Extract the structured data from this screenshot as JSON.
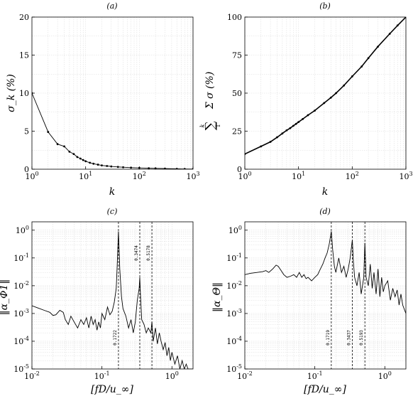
{
  "chart_data": [
    {
      "id": "a",
      "type": "line",
      "title": "(a)",
      "xlabel": "k",
      "ylabel": "σ_k (%)",
      "xscale": "log",
      "yscale": "linear",
      "xlim": [
        1,
        1000
      ],
      "ylim": [
        0,
        20
      ],
      "xticks": [
        {
          "v": 1,
          "label": "10^0"
        },
        {
          "v": 10,
          "label": "10^1"
        },
        {
          "v": 100,
          "label": "10^2"
        },
        {
          "v": 1000,
          "label": "10^3"
        }
      ],
      "yticks": [
        {
          "v": 0,
          "label": "0"
        },
        {
          "v": 5,
          "label": "5"
        },
        {
          "v": 10,
          "label": "10"
        },
        {
          "v": 15,
          "label": "15"
        },
        {
          "v": 20,
          "label": "20"
        }
      ],
      "grid": true,
      "series": [
        {
          "markers": true,
          "x": [
            1,
            2,
            3,
            4,
            5,
            6,
            7,
            8,
            9,
            10,
            12,
            14,
            17,
            20,
            25,
            30,
            40,
            50,
            70,
            100,
            150,
            200,
            300,
            500,
            700,
            1000
          ],
          "y": [
            10,
            4.9,
            3.3,
            3.0,
            2.3,
            2.0,
            1.6,
            1.4,
            1.2,
            1.05,
            0.85,
            0.72,
            0.6,
            0.5,
            0.42,
            0.36,
            0.3,
            0.26,
            0.21,
            0.17,
            0.13,
            0.11,
            0.08,
            0.05,
            0.03,
            0.02
          ]
        }
      ]
    },
    {
      "id": "b",
      "type": "line",
      "title": "(b)",
      "xlabel": "k",
      "ylabel": "Σ σ (%)",
      "ylabel_sum_upper": "k",
      "ylabel_sum_lower": "1",
      "xscale": "log",
      "yscale": "linear",
      "xlim": [
        1,
        1000
      ],
      "ylim": [
        0,
        100
      ],
      "xticks": [
        {
          "v": 1,
          "label": "10^0"
        },
        {
          "v": 10,
          "label": "10^1"
        },
        {
          "v": 100,
          "label": "10^2"
        },
        {
          "v": 1000,
          "label": "10^3"
        }
      ],
      "yticks": [
        {
          "v": 0,
          "label": "0"
        },
        {
          "v": 25,
          "label": "25"
        },
        {
          "v": 50,
          "label": "50"
        },
        {
          "v": 75,
          "label": "75"
        },
        {
          "v": 100,
          "label": "100"
        }
      ],
      "grid": true,
      "series": [
        {
          "markers": true,
          "x": [
            1,
            2,
            3,
            4,
            5,
            6,
            7,
            8,
            9,
            10,
            12,
            15,
            20,
            30,
            40,
            50,
            70,
            100,
            150,
            200,
            300,
            500,
            700,
            1000
          ],
          "y": [
            10,
            15,
            18,
            21,
            23.5,
            25.5,
            27,
            28.5,
            29.8,
            31,
            33,
            35.5,
            38.5,
            43.5,
            47,
            50,
            55,
            61,
            67.5,
            73,
            80.5,
            89,
            94.5,
            100
          ]
        }
      ]
    },
    {
      "id": "c",
      "type": "line",
      "title": "(c)",
      "xlabel": "[fD/u_∞]",
      "ylabel": "‖α_Φ1‖",
      "xscale": "log",
      "yscale": "log",
      "xlim": [
        0.01,
        2
      ],
      "ylim": [
        1e-05,
        2
      ],
      "xticks": [
        {
          "v": 0.01,
          "label": "10^-2"
        },
        {
          "v": 0.1,
          "label": "10^-1"
        },
        {
          "v": 1,
          "label": "10^0"
        }
      ],
      "yticks": [
        {
          "v": 1e-05,
          "label": "10^-5"
        },
        {
          "v": 0.0001,
          "label": "10^-4"
        },
        {
          "v": 0.001,
          "label": "10^-3"
        },
        {
          "v": 0.01,
          "label": "10^-2"
        },
        {
          "v": 0.1,
          "label": "10^-1"
        },
        {
          "v": 1,
          "label": "10^0"
        }
      ],
      "grid": true,
      "vlines": [
        {
          "x": 0.1722,
          "label": "0.1722",
          "label_pos": "bottom"
        },
        {
          "x": 0.3474,
          "label": "0.3474",
          "label_pos": "top"
        },
        {
          "x": 0.5178,
          "label": "0.5178",
          "label_pos": "top"
        }
      ],
      "series": [
        {
          "markers": false,
          "x": [
            0.01,
            0.012,
            0.015,
            0.018,
            0.02,
            0.022,
            0.025,
            0.028,
            0.03,
            0.033,
            0.036,
            0.04,
            0.045,
            0.05,
            0.055,
            0.06,
            0.065,
            0.07,
            0.075,
            0.08,
            0.085,
            0.09,
            0.095,
            0.1,
            0.11,
            0.12,
            0.13,
            0.14,
            0.15,
            0.16,
            0.165,
            0.1722,
            0.18,
            0.19,
            0.2,
            0.22,
            0.24,
            0.26,
            0.28,
            0.3,
            0.32,
            0.34,
            0.3474,
            0.355,
            0.37,
            0.4,
            0.43,
            0.46,
            0.5,
            0.5178,
            0.54,
            0.58,
            0.62,
            0.66,
            0.7,
            0.75,
            0.8,
            0.85,
            0.9,
            0.95,
            1.0,
            1.1,
            1.2,
            1.3,
            1.4,
            1.5,
            1.6,
            1.7,
            1.8,
            2.0
          ],
          "y": [
            0.0019,
            0.0016,
            0.0013,
            0.0011,
            0.00085,
            0.0009,
            0.0013,
            0.0011,
            0.0006,
            0.0004,
            0.0008,
            0.0005,
            0.0003,
            0.0006,
            0.0004,
            0.0007,
            0.0003,
            0.0008,
            0.0004,
            0.0006,
            0.00025,
            0.0005,
            0.0003,
            0.001,
            0.0006,
            0.0017,
            0.0009,
            0.0012,
            0.0025,
            0.008,
            0.05,
            0.9,
            0.04,
            0.004,
            0.0015,
            0.0008,
            0.0003,
            0.0006,
            0.0002,
            0.0005,
            0.003,
            0.008,
            0.02,
            0.005,
            0.0006,
            0.0004,
            0.0002,
            0.0003,
            0.0002,
            0.0005,
            0.0001,
            0.0003,
            8e-05,
            0.0002,
            0.0001,
            5e-05,
            9e-05,
            3e-05,
            6e-05,
            2e-05,
            4e-05,
            1.5e-05,
            3e-05,
            1e-05,
            2e-05,
            1e-05,
            1.5e-05,
            1e-05,
            1e-05,
            1e-05
          ]
        }
      ]
    },
    {
      "id": "d",
      "type": "line",
      "title": "(d)",
      "xlabel": "[fD/u_∞]",
      "ylabel": "‖α_Θ‖",
      "xscale": "log",
      "yscale": "log",
      "xlim": [
        0.01,
        2
      ],
      "ylim": [
        1e-05,
        2
      ],
      "xticks": [
        {
          "v": 0.01,
          "label": "10^-2"
        },
        {
          "v": 0.1,
          "label": "10^-1"
        },
        {
          "v": 1,
          "label": "10^0"
        }
      ],
      "yticks": [
        {
          "v": 1e-05,
          "label": "10^-5"
        },
        {
          "v": 0.0001,
          "label": "10^-4"
        },
        {
          "v": 0.001,
          "label": "10^-3"
        },
        {
          "v": 0.01,
          "label": "10^-2"
        },
        {
          "v": 0.1,
          "label": "10^-1"
        },
        {
          "v": 1,
          "label": "10^0"
        }
      ],
      "grid": true,
      "vlines": [
        {
          "x": 0.1719,
          "label": "0.1719",
          "label_pos": "bottom"
        },
        {
          "x": 0.3437,
          "label": "0.3437",
          "label_pos": "bottom"
        },
        {
          "x": 0.5193,
          "label": "0.5193",
          "label_pos": "bottom"
        }
      ],
      "series": [
        {
          "markers": false,
          "x": [
            0.01,
            0.012,
            0.015,
            0.018,
            0.02,
            0.022,
            0.025,
            0.028,
            0.03,
            0.033,
            0.036,
            0.04,
            0.045,
            0.05,
            0.055,
            0.06,
            0.065,
            0.07,
            0.075,
            0.08,
            0.09,
            0.1,
            0.11,
            0.12,
            0.13,
            0.14,
            0.15,
            0.16,
            0.1719,
            0.18,
            0.19,
            0.2,
            0.22,
            0.24,
            0.26,
            0.28,
            0.3,
            0.32,
            0.3437,
            0.355,
            0.37,
            0.4,
            0.43,
            0.46,
            0.5,
            0.5193,
            0.54,
            0.58,
            0.62,
            0.66,
            0.7,
            0.75,
            0.8,
            0.85,
            0.9,
            0.95,
            1.0,
            1.1,
            1.2,
            1.3,
            1.4,
            1.5,
            1.6,
            1.7,
            1.8,
            2.0
          ],
          "y": [
            0.025,
            0.028,
            0.03,
            0.032,
            0.035,
            0.03,
            0.04,
            0.055,
            0.05,
            0.035,
            0.025,
            0.02,
            0.022,
            0.025,
            0.02,
            0.03,
            0.02,
            0.025,
            0.018,
            0.02,
            0.015,
            0.02,
            0.025,
            0.04,
            0.06,
            0.1,
            0.15,
            0.3,
            0.9,
            0.2,
            0.05,
            0.03,
            0.1,
            0.03,
            0.05,
            0.02,
            0.04,
            0.1,
            0.45,
            0.08,
            0.02,
            0.01,
            0.03,
            0.005,
            0.02,
            0.35,
            0.02,
            0.01,
            0.06,
            0.008,
            0.03,
            0.005,
            0.04,
            0.004,
            0.02,
            0.006,
            0.01,
            0.015,
            0.003,
            0.008,
            0.004,
            0.007,
            0.002,
            0.005,
            0.002,
            0.001
          ]
        }
      ]
    }
  ]
}
